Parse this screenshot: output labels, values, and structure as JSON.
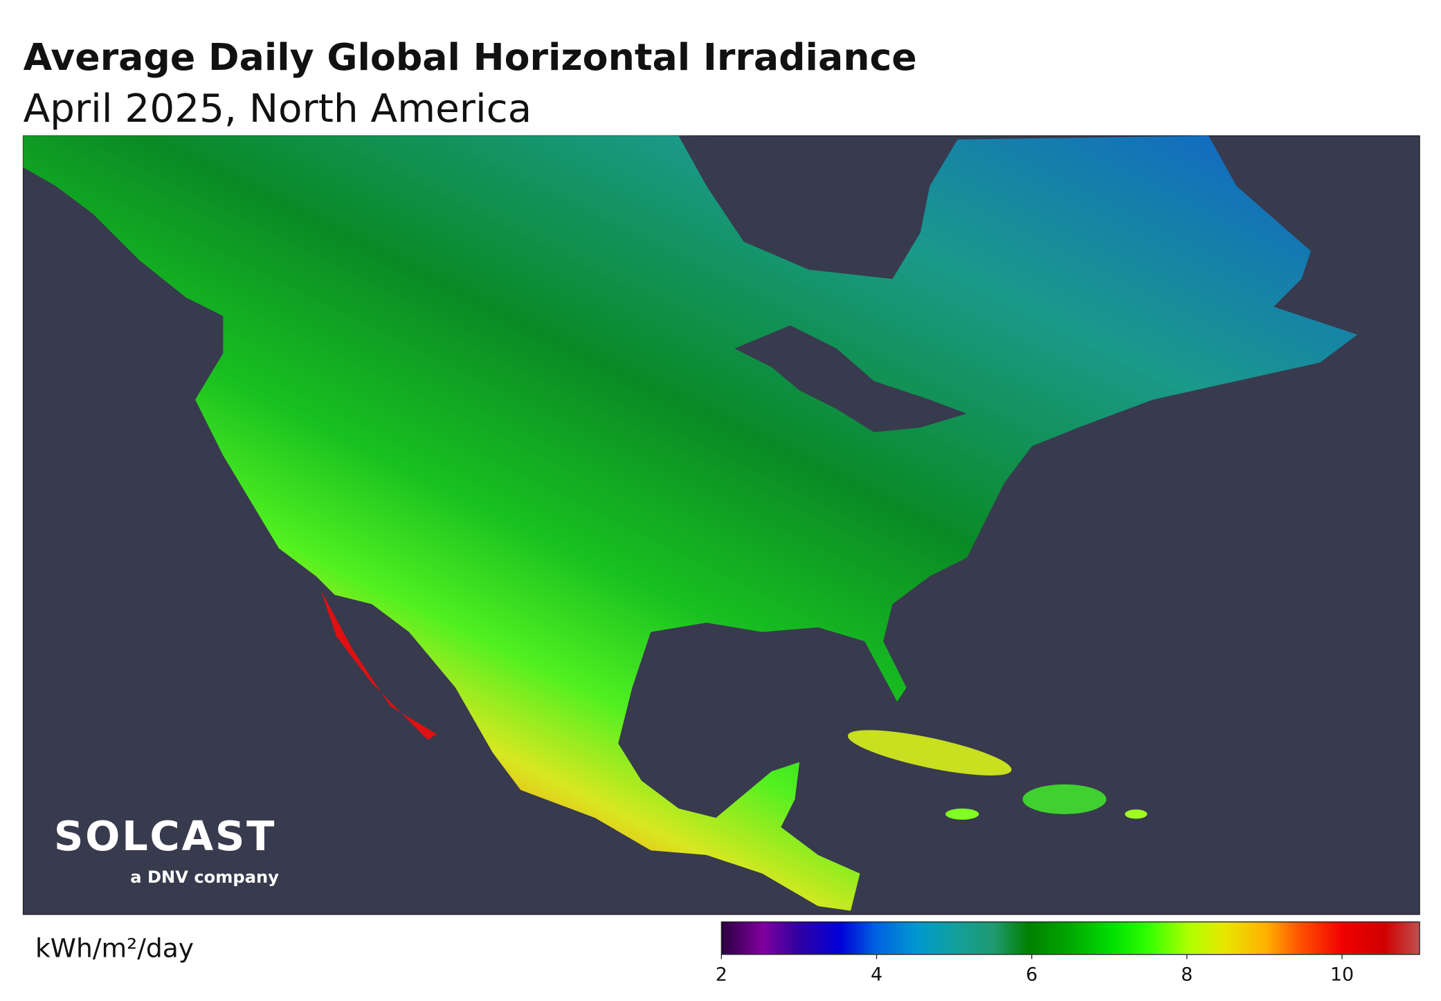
{
  "title": "Average Daily Global Horizontal Irradiance",
  "subtitle": "April 2025, North America",
  "logo": {
    "name": "SOLCAST",
    "tagline": "a DNV company"
  },
  "colorbar": {
    "label": "kWh/m²/day",
    "lim": [
      2,
      11
    ],
    "ticks": [
      2,
      4,
      6,
      8,
      10
    ]
  }
}
